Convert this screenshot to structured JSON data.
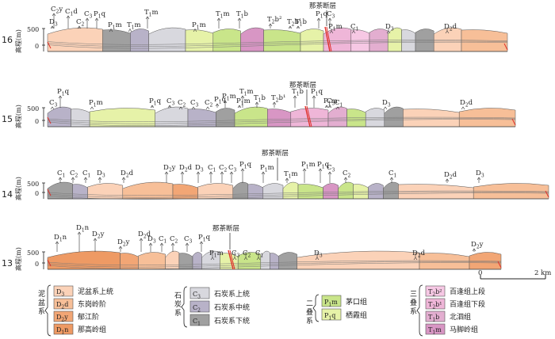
{
  "colors": {
    "D3": "#fbd2b8",
    "D2d": "#f7bf98",
    "D2y": "#f2a675",
    "D1n": "#ee9a64",
    "C3": "#d8d8de",
    "C2": "#b8b2c8",
    "C1": "#a0a0a0",
    "P1m": "#c9e58a",
    "P1q": "#e6f2a8",
    "T2b2": "#f6c8e4",
    "T2b1": "#efb6d8",
    "T1b": "#e3aed0",
    "T1m": "#d896c4",
    "fault": "#e0302a"
  },
  "profiles": [
    {
      "number": "16",
      "axis": {
        "label": "高程(m)",
        "ticks": [
          "500",
          "0"
        ]
      },
      "top_labels": [
        {
          "text": "C",
          "sub": "2",
          "suffix": "y"
        },
        {
          "text": "C",
          "sub": "1",
          "suffix": "d"
        },
        {
          "text": "D",
          "sub": "3",
          "suffix": ""
        },
        {
          "text": "C",
          "sub": "2",
          "suffix": ""
        },
        {
          "text": "C",
          "sub": "3",
          "suffix": ""
        },
        {
          "text": "P",
          "sub": "1",
          "suffix": "q"
        },
        {
          "text": "P",
          "sub": "1",
          "suffix": "m"
        },
        {
          "text": "T",
          "sub": "1",
          "suffix": "m"
        },
        {
          "text": "T",
          "sub": "1",
          "suffix": "m"
        },
        {
          "text": "P",
          "sub": "1",
          "suffix": "m"
        },
        {
          "text": "T",
          "sub": "1",
          "suffix": "m"
        },
        {
          "text": "T",
          "sub": "1",
          "suffix": "b"
        },
        {
          "text": "T",
          "sub": "2",
          "suffix": "b²"
        },
        {
          "text": "T",
          "sub": "2",
          "suffix": "b¹"
        },
        {
          "text": "T",
          "sub": "1",
          "suffix": "b"
        },
        {
          "text": "P",
          "sub": "1",
          "suffix": "q"
        },
        {
          "text": "C",
          "sub": "3",
          "suffix": ""
        },
        {
          "text": "P",
          "sub": "1",
          "suffix": "m"
        },
        {
          "text": "C",
          "sub": "1",
          "suffix": ""
        },
        {
          "text": "D",
          "sub": "3",
          "suffix": ""
        },
        {
          "text": "D",
          "sub": "2",
          "suffix": "d"
        }
      ],
      "fault_label": "那茶断层"
    },
    {
      "number": "15",
      "axis": {
        "label": "高程(m)",
        "ticks": [
          "500",
          "0"
        ]
      },
      "top_labels": [
        {
          "text": "P",
          "sub": "1",
          "suffix": "q"
        },
        {
          "text": "C",
          "sub": "3",
          "suffix": ""
        },
        {
          "text": "P",
          "sub": "1",
          "suffix": "m"
        },
        {
          "text": "P",
          "sub": "1",
          "suffix": "q"
        },
        {
          "text": "C",
          "sub": "3",
          "suffix": ""
        },
        {
          "text": "C",
          "sub": "2",
          "suffix": ""
        },
        {
          "text": "C",
          "sub": "3",
          "suffix": ""
        },
        {
          "text": "C",
          "sub": "2",
          "suffix": ""
        },
        {
          "text": "P",
          "sub": "1",
          "suffix": "q"
        },
        {
          "text": "P",
          "sub": "1",
          "suffix": "m"
        },
        {
          "text": "P",
          "sub": "1",
          "suffix": "m"
        },
        {
          "text": "T",
          "sub": "1",
          "suffix": "m"
        },
        {
          "text": "T",
          "sub": "1",
          "suffix": "b"
        },
        {
          "text": "T",
          "sub": "2",
          "suffix": "b¹"
        },
        {
          "text": "T",
          "sub": "1",
          "suffix": "b"
        },
        {
          "text": "P",
          "sub": "1",
          "suffix": "q"
        },
        {
          "text": "P",
          "sub": "1",
          "suffix": "m"
        },
        {
          "text": "C",
          "sub": "3",
          "suffix": ""
        },
        {
          "text": "C",
          "sub": "1",
          "suffix": ""
        },
        {
          "text": "D",
          "sub": "3",
          "suffix": ""
        },
        {
          "text": "D",
          "sub": "2",
          "suffix": "d"
        }
      ],
      "fault_label": "那茶断层"
    },
    {
      "number": "14",
      "axis": {
        "label": "高程(m)",
        "ticks": [
          "500",
          "0"
        ]
      },
      "top_labels": [
        {
          "text": "C",
          "sub": "1",
          "suffix": ""
        },
        {
          "text": "C",
          "sub": "2",
          "suffix": ""
        },
        {
          "text": "C",
          "sub": "1",
          "suffix": ""
        },
        {
          "text": "D",
          "sub": "3",
          "suffix": ""
        },
        {
          "text": "D",
          "sub": "2",
          "suffix": "d"
        },
        {
          "text": "D",
          "sub": "2",
          "suffix": "y"
        },
        {
          "text": "D",
          "sub": "2",
          "suffix": "d"
        },
        {
          "text": "D",
          "sub": "3",
          "suffix": ""
        },
        {
          "text": "C",
          "sub": "1",
          "suffix": ""
        },
        {
          "text": "C",
          "sub": "2",
          "suffix": ""
        },
        {
          "text": "C",
          "sub": "3",
          "suffix": ""
        },
        {
          "text": "P",
          "sub": "1",
          "suffix": "q"
        },
        {
          "text": "P",
          "sub": "1",
          "suffix": "m"
        },
        {
          "text": "T",
          "sub": "1",
          "suffix": "m"
        },
        {
          "text": "P",
          "sub": "1",
          "suffix": "m"
        },
        {
          "text": "P",
          "sub": "1",
          "suffix": "q"
        },
        {
          "text": "C",
          "sub": "3",
          "suffix": ""
        },
        {
          "text": "C",
          "sub": "2",
          "suffix": ""
        },
        {
          "text": "C",
          "sub": "1",
          "suffix": ""
        },
        {
          "text": "D",
          "sub": "3",
          "suffix": ""
        },
        {
          "text": "D",
          "sub": "2",
          "suffix": "d"
        }
      ],
      "fault_label": "那茶断层"
    },
    {
      "number": "13",
      "axis": {
        "label": "高程(m)",
        "ticks": [
          "500",
          "0"
        ]
      },
      "top_labels": [
        {
          "text": "D",
          "sub": "1",
          "suffix": "n"
        },
        {
          "text": "D",
          "sub": "1",
          "suffix": "n"
        },
        {
          "text": "D",
          "sub": "2",
          "suffix": "y"
        },
        {
          "text": "D",
          "sub": "2",
          "suffix": "y"
        },
        {
          "text": "D",
          "sub": "2",
          "suffix": "d"
        },
        {
          "text": "D",
          "sub": "3",
          "suffix": ""
        },
        {
          "text": "C",
          "sub": "1",
          "suffix": ""
        },
        {
          "text": "C",
          "sub": "2",
          "suffix": ""
        },
        {
          "text": "C",
          "sub": "3",
          "suffix": ""
        },
        {
          "text": "P",
          "sub": "1",
          "suffix": "q"
        },
        {
          "text": "P",
          "sub": "1",
          "suffix": "m"
        },
        {
          "text": "C",
          "sub": "3",
          "suffix": ""
        },
        {
          "text": "C",
          "sub": "2",
          "suffix": ""
        },
        {
          "text": "C",
          "sub": "1",
          "suffix": ""
        },
        {
          "text": "D",
          "sub": "3",
          "suffix": ""
        },
        {
          "text": "D",
          "sub": "2",
          "suffix": "d"
        },
        {
          "text": "D",
          "sub": "2",
          "suffix": "y"
        }
      ],
      "fault_label": "那茶断层"
    }
  ],
  "scale_bar": {
    "start": "0",
    "end": "2 km"
  },
  "legend": {
    "devonian": {
      "group": "泥盆系",
      "items": [
        {
          "code": "D",
          "sub": "3",
          "suffix": "",
          "name": "泥盆系上统",
          "color_key": "D3"
        },
        {
          "code": "D",
          "sub": "2",
          "suffix": "d",
          "name": "东岗岭阶",
          "color_key": "D2d"
        },
        {
          "code": "D",
          "sub": "2",
          "suffix": "y",
          "name": "郁江阶",
          "color_key": "D2y"
        },
        {
          "code": "D",
          "sub": "1",
          "suffix": "n",
          "name": "那高岭组",
          "color_key": "D1n"
        }
      ]
    },
    "carboniferous": {
      "group": "石炭系",
      "items": [
        {
          "code": "C",
          "sub": "3",
          "suffix": "",
          "name": "石炭系上统",
          "color_key": "C3"
        },
        {
          "code": "C",
          "sub": "2",
          "suffix": "",
          "name": "石炭系中统",
          "color_key": "C2"
        },
        {
          "code": "C",
          "sub": "1",
          "suffix": "",
          "name": "石炭系下统",
          "color_key": "C1"
        }
      ]
    },
    "permian": {
      "group": "二叠系",
      "items": [
        {
          "code": "P",
          "sub": "1",
          "suffix": "m",
          "name": "茅口组",
          "color_key": "P1m"
        },
        {
          "code": "P",
          "sub": "1",
          "suffix": "q",
          "name": "栖霞组",
          "color_key": "P1q"
        }
      ]
    },
    "triassic": {
      "group": "三叠系",
      "items": [
        {
          "code": "T",
          "sub": "2",
          "suffix": "b²",
          "name": "百逢组上段",
          "color_key": "T2b2"
        },
        {
          "code": "T",
          "sub": "2",
          "suffix": "b¹",
          "name": "百逢组下段",
          "color_key": "T2b1"
        },
        {
          "code": "T",
          "sub": "1",
          "suffix": "b",
          "name": "北泗组",
          "color_key": "T1b"
        },
        {
          "code": "T",
          "sub": "1",
          "suffix": "m",
          "name": "马脚岭组",
          "color_key": "T1m"
        }
      ]
    }
  }
}
